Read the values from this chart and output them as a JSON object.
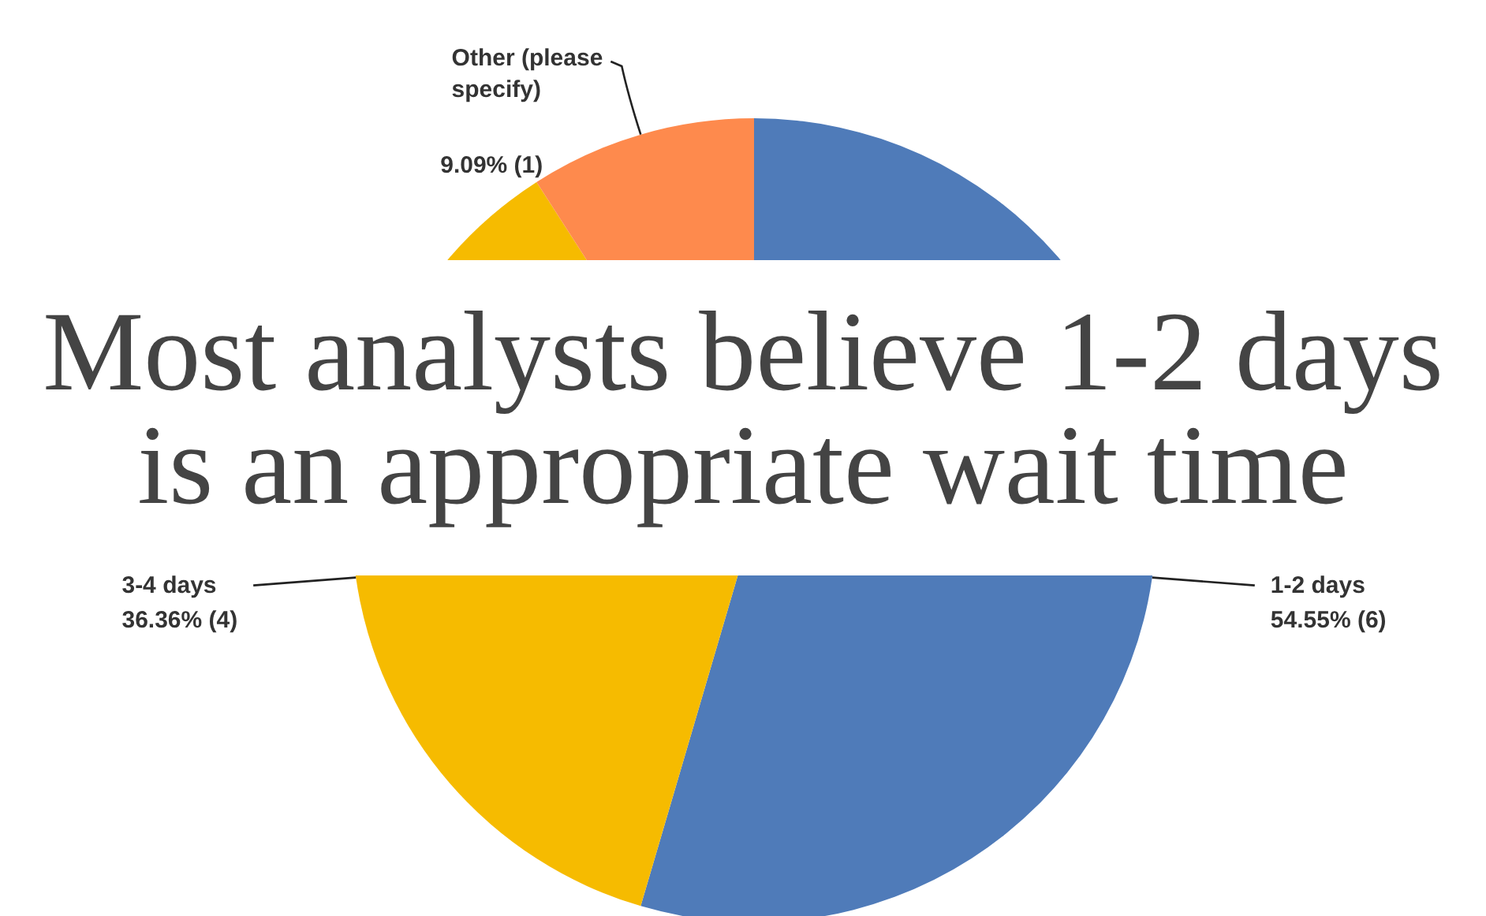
{
  "chart_data": {
    "type": "pie",
    "title": "Most analysts believe 1-2 days is an appropriate wait time",
    "categories": [
      "1-2 days",
      "3-4 days",
      "Other (please specify)"
    ],
    "values": [
      6,
      4,
      1
    ],
    "value_labels": [
      "54.55% (6)",
      "36.36% (4)",
      "9.09% (1)"
    ],
    "colors": [
      "#4f7bb9",
      "#f6bb00",
      "#fe8a4d"
    ]
  }
}
